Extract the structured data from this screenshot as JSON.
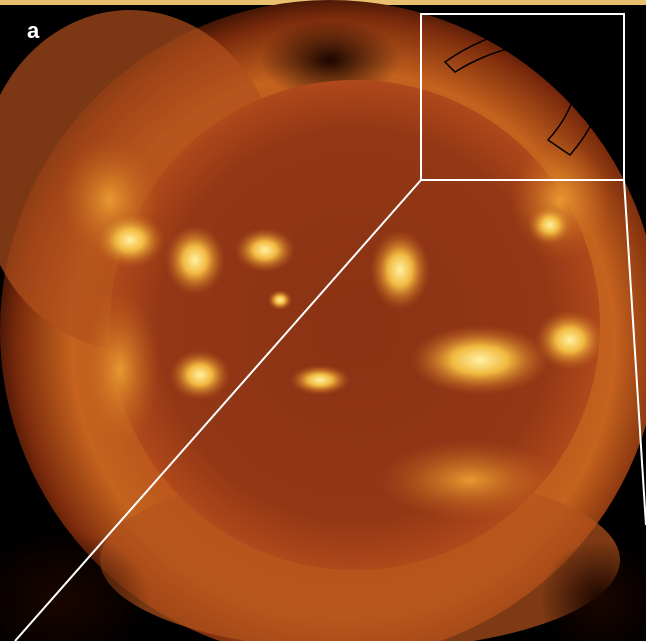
{
  "panel_label": "a"
}
